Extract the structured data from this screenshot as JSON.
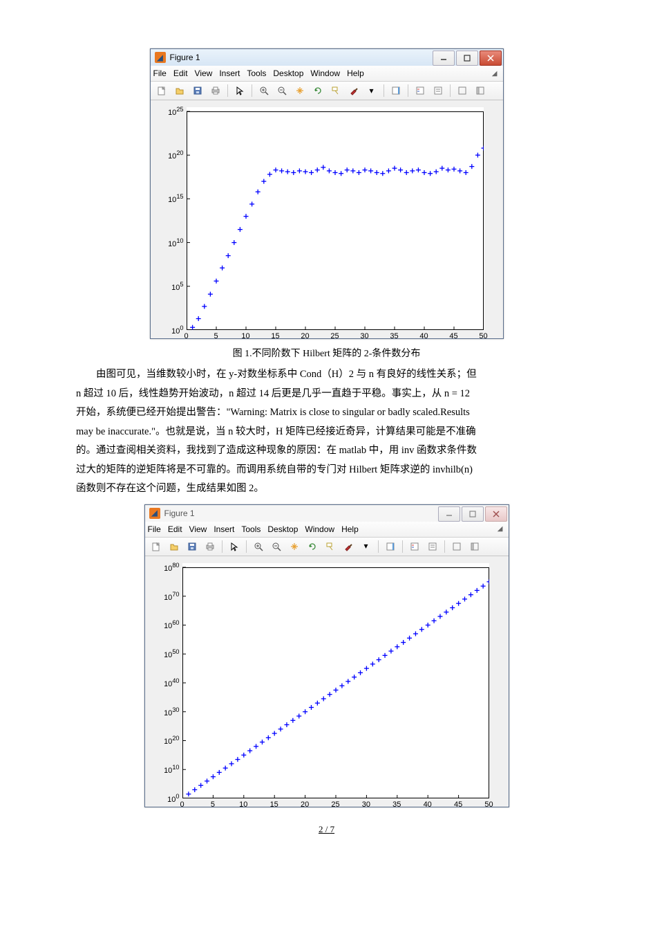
{
  "figure1": {
    "window_title": "Figure 1",
    "menubar": [
      "File",
      "Edit",
      "View",
      "Insert",
      "Tools",
      "Desktop",
      "Window",
      "Help"
    ],
    "chart": {
      "type": "scatter",
      "marker": "plus",
      "marker_color": "#0000ff",
      "marker_size": 7,
      "background_color": "#ffffff",
      "axis_color": "#000000",
      "xlim": [
        0,
        50
      ],
      "xticks": [
        0,
        5,
        10,
        15,
        20,
        25,
        30,
        35,
        40,
        45,
        50
      ],
      "yscale": "log",
      "ylim_exp": [
        0,
        25
      ],
      "ytick_exp": [
        0,
        5,
        10,
        15,
        20,
        25
      ],
      "x": [
        1,
        2,
        3,
        4,
        5,
        6,
        7,
        8,
        9,
        10,
        11,
        12,
        13,
        14,
        15,
        16,
        17,
        18,
        19,
        20,
        21,
        22,
        23,
        24,
        25,
        26,
        27,
        28,
        29,
        30,
        31,
        32,
        33,
        34,
        35,
        36,
        37,
        38,
        39,
        40,
        41,
        42,
        43,
        44,
        45,
        46,
        47,
        48,
        49,
        50
      ],
      "y_exp": [
        0.3,
        1.3,
        2.7,
        4.1,
        5.6,
        7.1,
        8.5,
        10.0,
        11.5,
        13.0,
        14.4,
        15.8,
        17.0,
        17.8,
        18.3,
        18.2,
        18.1,
        18.0,
        18.2,
        18.1,
        18.0,
        18.3,
        18.6,
        18.2,
        18.0,
        17.9,
        18.3,
        18.2,
        18.0,
        18.3,
        18.2,
        18.0,
        17.9,
        18.2,
        18.5,
        18.3,
        18.0,
        18.2,
        18.3,
        18.0,
        17.9,
        18.1,
        18.5,
        18.3,
        18.4,
        18.2,
        18.0,
        18.7,
        20.0,
        20.8
      ]
    }
  },
  "caption1": "图 1.不同阶数下 Hilbert 矩阵的 2-条件数分布",
  "paragraph": {
    "line1_a": "由图可见，当维数较小时，在 y-对数坐标系中 Cond（H）2 与 n 有良好的线性关系；但",
    "line2": "n 超过 10 后，线性趋势开始波动，n 超过 14 后更是几乎一直趋于平稳。事实上，从 n = 12",
    "line3": "开始，系统便已经开始提出警告：\"Warning: Matrix is close to singular or badly scaled.Results",
    "line4": "may be inaccurate.\"。也就是说，当 n 较大时，H 矩阵已经接近奇异，计算结果可能是不准确",
    "line5": "的。通过查阅相关资料，我找到了造成这种现象的原因：在 matlab 中，用 inv 函数求条件数",
    "line6": "过大的矩阵的逆矩阵将是不可靠的。而调用系统自带的专门对 Hilbert 矩阵求逆的 invhilb(n)",
    "line7": "函数则不存在这个问题，生成结果如图 2。"
  },
  "figure2": {
    "window_title": "Figure 1",
    "menubar": [
      "File",
      "Edit",
      "View",
      "Insert",
      "Tools",
      "Desktop",
      "Window",
      "Help"
    ],
    "chart": {
      "type": "scatter",
      "marker": "plus",
      "marker_color": "#0000ff",
      "marker_size": 7,
      "background_color": "#ffffff",
      "axis_color": "#000000",
      "xlim": [
        0,
        50
      ],
      "xticks": [
        0,
        5,
        10,
        15,
        20,
        25,
        30,
        35,
        40,
        45,
        50
      ],
      "yscale": "log",
      "ylim_exp": [
        0,
        80
      ],
      "ytick_exp": [
        0,
        10,
        20,
        30,
        40,
        50,
        60,
        70,
        80
      ],
      "x": [
        1,
        2,
        3,
        4,
        5,
        6,
        7,
        8,
        9,
        10,
        11,
        12,
        13,
        14,
        15,
        16,
        17,
        18,
        19,
        20,
        21,
        22,
        23,
        24,
        25,
        26,
        27,
        28,
        29,
        30,
        31,
        32,
        33,
        34,
        35,
        36,
        37,
        38,
        39,
        40,
        41,
        42,
        43,
        44,
        45,
        46,
        47,
        48,
        49,
        50
      ],
      "y_exp": [
        1.5,
        3.0,
        4.5,
        6.0,
        7.5,
        9.0,
        10.5,
        12.0,
        13.5,
        15.0,
        16.5,
        18.0,
        19.5,
        21.0,
        22.5,
        24.0,
        25.5,
        27.0,
        28.5,
        30.0,
        31.5,
        33.0,
        34.5,
        36.0,
        37.5,
        39.0,
        40.5,
        42.0,
        43.5,
        45.0,
        46.5,
        48.0,
        49.5,
        51.0,
        52.5,
        54.0,
        55.5,
        57.0,
        58.5,
        60.0,
        61.5,
        63.0,
        64.5,
        66.0,
        67.5,
        69.0,
        70.5,
        72.0,
        73.5,
        75.0
      ]
    }
  },
  "footer": {
    "page": "2",
    "total": "7",
    "sep": " / "
  },
  "colors": {
    "page_bg": "#ffffff",
    "window_frame": "#5a6e8c",
    "toolbar_bg": "#efefef",
    "plot_bg": "#f0f0f0"
  }
}
